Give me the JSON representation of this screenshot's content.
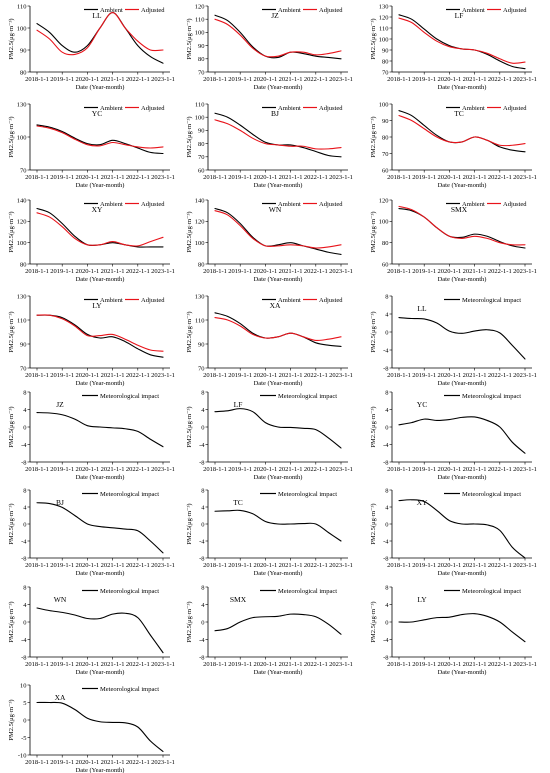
{
  "xticks": [
    "2018-1-1",
    "2019-1-1",
    "2020-1-1",
    "2021-1-1",
    "2022-1-1",
    "2023-1-1"
  ],
  "xlabel": "Date (Year-month)",
  "ylabel": "PM2.5(μg·m⁻³)",
  "legend": {
    "ambient": "Ambient",
    "adjusted": "Adjusted",
    "met": "Meteorological impact"
  },
  "colors": {
    "ambient": "#000000",
    "adjusted": "#e8131a",
    "axis": "#000000"
  },
  "chart_data": [
    {
      "type": "line",
      "title": "LL",
      "ylim": [
        80,
        110
      ],
      "yticks": [
        80,
        90,
        100,
        110
      ],
      "x": [
        0,
        0.5,
        1,
        1.5,
        2,
        2.5,
        3,
        3.5,
        4,
        4.5,
        5
      ],
      "series": [
        {
          "name": "Ambient",
          "values": [
            102,
            98,
            92,
            89,
            92,
            100,
            107,
            100,
            92,
            87,
            84
          ]
        },
        {
          "name": "Adjusted",
          "values": [
            99,
            95,
            89,
            88,
            91,
            100,
            107,
            100,
            94,
            90,
            90
          ]
        }
      ]
    },
    {
      "type": "line",
      "title": "JZ",
      "ylim": [
        70,
        120
      ],
      "yticks": [
        70,
        80,
        90,
        100,
        110,
        120
      ],
      "x": [
        0,
        0.5,
        1,
        1.5,
        2,
        2.5,
        3,
        3.5,
        4,
        4.5,
        5
      ],
      "series": [
        {
          "name": "Ambient",
          "values": [
            113,
            109,
            100,
            89,
            82,
            81,
            85,
            84,
            82,
            81,
            80
          ]
        },
        {
          "name": "Adjusted",
          "values": [
            110,
            106,
            98,
            88,
            82,
            82,
            85,
            85,
            83,
            84,
            86
          ]
        }
      ]
    },
    {
      "type": "line",
      "title": "LF",
      "ylim": [
        70,
        130
      ],
      "yticks": [
        70,
        80,
        90,
        100,
        110,
        120,
        130
      ],
      "x": [
        0,
        0.5,
        1,
        1.5,
        2,
        2.5,
        3,
        3.5,
        4,
        4.5,
        5
      ],
      "series": [
        {
          "name": "Ambient",
          "values": [
            122,
            118,
            109,
            100,
            94,
            91,
            90,
            86,
            80,
            75,
            73
          ]
        },
        {
          "name": "Adjusted",
          "values": [
            119,
            115,
            106,
            98,
            93,
            91,
            90,
            87,
            82,
            78,
            79
          ]
        }
      ]
    },
    {
      "type": "line",
      "title": "YC",
      "ylim": [
        70,
        130
      ],
      "yticks": [
        70,
        100,
        130
      ],
      "x": [
        0,
        0.5,
        1,
        1.5,
        2,
        2.5,
        3,
        3.5,
        4,
        4.5,
        5
      ],
      "series": [
        {
          "name": "Ambient",
          "values": [
            111,
            109,
            105,
            99,
            94,
            93,
            97,
            94,
            90,
            86,
            85
          ]
        },
        {
          "name": "Adjusted",
          "values": [
            110,
            108,
            104,
            98,
            93,
            92,
            95,
            93,
            91,
            90,
            91
          ]
        }
      ]
    },
    {
      "type": "line",
      "title": "BJ",
      "ylim": [
        60,
        110
      ],
      "yticks": [
        60,
        70,
        80,
        90,
        100,
        110
      ],
      "x": [
        0,
        0.5,
        1,
        1.5,
        2,
        2.5,
        3,
        3.5,
        4,
        4.5,
        5
      ],
      "series": [
        {
          "name": "Ambient",
          "values": [
            103,
            100,
            94,
            87,
            81,
            79,
            79,
            77,
            74,
            71,
            70
          ]
        },
        {
          "name": "Adjusted",
          "values": [
            98,
            95,
            90,
            84,
            80,
            79,
            78,
            78,
            76,
            76,
            77
          ]
        }
      ]
    },
    {
      "type": "line",
      "title": "TC",
      "ylim": [
        60,
        100
      ],
      "yticks": [
        60,
        70,
        80,
        90,
        100
      ],
      "x": [
        0,
        0.5,
        1,
        1.5,
        2,
        2.5,
        3,
        3.5,
        4,
        4.5,
        5
      ],
      "series": [
        {
          "name": "Ambient",
          "values": [
            96,
            93,
            87,
            81,
            77,
            77,
            80,
            78,
            74,
            72,
            71
          ]
        },
        {
          "name": "Adjusted",
          "values": [
            93,
            90,
            85,
            80,
            77,
            77,
            80,
            78,
            75,
            75,
            76
          ]
        }
      ]
    },
    {
      "type": "line",
      "title": "XY",
      "ylim": [
        80,
        140
      ],
      "yticks": [
        80,
        100,
        120,
        140
      ],
      "x": [
        0,
        0.5,
        1,
        1.5,
        2,
        2.5,
        3,
        3.5,
        4,
        4.5,
        5
      ],
      "series": [
        {
          "name": "Ambient",
          "values": [
            132,
            128,
            118,
            106,
            98,
            98,
            100,
            98,
            96,
            96,
            96
          ]
        },
        {
          "name": "Adjusted",
          "values": [
            128,
            124,
            115,
            104,
            98,
            98,
            101,
            98,
            97,
            101,
            105
          ]
        }
      ]
    },
    {
      "type": "line",
      "title": "WN",
      "ylim": [
        80,
        140
      ],
      "yticks": [
        80,
        100,
        120,
        140
      ],
      "x": [
        0,
        0.5,
        1,
        1.5,
        2,
        2.5,
        3,
        3.5,
        4,
        4.5,
        5
      ],
      "series": [
        {
          "name": "Ambient",
          "values": [
            132,
            128,
            118,
            105,
            97,
            98,
            100,
            97,
            94,
            91,
            89
          ]
        },
        {
          "name": "Adjusted",
          "values": [
            130,
            126,
            116,
            104,
            97,
            97,
            98,
            97,
            95,
            96,
            98
          ]
        }
      ]
    },
    {
      "type": "line",
      "title": "SMX",
      "ylim": [
        60,
        120
      ],
      "yticks": [
        60,
        80,
        100,
        120
      ],
      "x": [
        0,
        0.5,
        1,
        1.5,
        2,
        2.5,
        3,
        3.5,
        4,
        4.5,
        5
      ],
      "series": [
        {
          "name": "Ambient",
          "values": [
            112,
            110,
            104,
            94,
            86,
            85,
            88,
            86,
            81,
            77,
            75
          ]
        },
        {
          "name": "Adjusted",
          "values": [
            114,
            111,
            104,
            94,
            86,
            84,
            86,
            84,
            80,
            78,
            78
          ]
        }
      ]
    },
    {
      "type": "line",
      "title": "LY",
      "ylim": [
        70,
        130
      ],
      "yticks": [
        70,
        90,
        110,
        130
      ],
      "x": [
        0,
        0.5,
        1,
        1.5,
        2,
        2.5,
        3,
        3.5,
        4,
        4.5,
        5
      ],
      "series": [
        {
          "name": "Ambient",
          "values": [
            114,
            114,
            112,
            106,
            98,
            95,
            96,
            92,
            86,
            81,
            79
          ]
        },
        {
          "name": "Adjusted",
          "values": [
            114,
            114,
            111,
            105,
            97,
            97,
            98,
            94,
            89,
            85,
            84
          ]
        }
      ]
    },
    {
      "type": "line",
      "title": "XA",
      "ylim": [
        70,
        130
      ],
      "yticks": [
        70,
        90,
        110,
        130
      ],
      "x": [
        0,
        0.5,
        1,
        1.5,
        2,
        2.5,
        3,
        3.5,
        4,
        4.5,
        5
      ],
      "series": [
        {
          "name": "Ambient",
          "values": [
            116,
            113,
            107,
            99,
            95,
            96,
            99,
            96,
            91,
            89,
            88
          ]
        },
        {
          "name": "Adjusted",
          "values": [
            112,
            110,
            105,
            98,
            95,
            96,
            99,
            96,
            93,
            94,
            96
          ]
        }
      ]
    },
    {
      "type": "line",
      "title": "LL",
      "ylim": [
        -8,
        8
      ],
      "yticks": [
        -8,
        -4,
        0,
        4,
        8
      ],
      "x": [
        0,
        0.5,
        1,
        1.5,
        2,
        2.5,
        3,
        3.5,
        4,
        4.5,
        5
      ],
      "series": [
        {
          "name": "Meteorological impact",
          "values": [
            3.2,
            3,
            2.9,
            2,
            0.2,
            -0.3,
            0.2,
            0.5,
            -0.2,
            -3,
            -6
          ]
        }
      ]
    },
    {
      "type": "line",
      "title": "JZ",
      "ylim": [
        -8,
        8
      ],
      "yticks": [
        -8,
        -4,
        0,
        4,
        8
      ],
      "x": [
        0,
        0.5,
        1,
        1.5,
        2,
        2.5,
        3,
        3.5,
        4,
        4.5,
        5
      ],
      "series": [
        {
          "name": "Meteorological impact",
          "values": [
            3.3,
            3.2,
            2.8,
            1.8,
            0.3,
            0,
            -0.2,
            -0.4,
            -1,
            -2.8,
            -4.5
          ]
        }
      ]
    },
    {
      "type": "line",
      "title": "LF",
      "ylim": [
        -8,
        8
      ],
      "yticks": [
        -8,
        -4,
        0,
        4,
        8
      ],
      "x": [
        0,
        0.5,
        1,
        1.5,
        2,
        2.5,
        3,
        3.5,
        4,
        4.5,
        5
      ],
      "series": [
        {
          "name": "Meteorological impact",
          "values": [
            3.5,
            3.7,
            4.2,
            3.5,
            1,
            0,
            -0.1,
            -0.3,
            -0.6,
            -2.5,
            -4.8
          ]
        }
      ]
    },
    {
      "type": "line",
      "title": "YC",
      "ylim": [
        -8,
        8
      ],
      "yticks": [
        -8,
        -4,
        0,
        4,
        8
      ],
      "x": [
        0,
        0.5,
        1,
        1.5,
        2,
        2.5,
        3,
        3.5,
        4,
        4.5,
        5
      ],
      "series": [
        {
          "name": "Meteorological impact",
          "values": [
            0.5,
            1,
            1.8,
            1.5,
            1.7,
            2.2,
            2.3,
            1.5,
            0,
            -3.5,
            -6
          ]
        }
      ]
    },
    {
      "type": "line",
      "title": "BJ",
      "ylim": [
        -8,
        8
      ],
      "yticks": [
        -8,
        -4,
        0,
        4,
        8
      ],
      "x": [
        0,
        0.5,
        1,
        1.5,
        2,
        2.5,
        3,
        3.5,
        4,
        4.5,
        5
      ],
      "series": [
        {
          "name": "Meteorological impact",
          "values": [
            5,
            4.8,
            3.9,
            2,
            0,
            -0.6,
            -0.9,
            -1.2,
            -1.6,
            -4,
            -6.8
          ]
        }
      ]
    },
    {
      "type": "line",
      "title": "TC",
      "ylim": [
        -8,
        8
      ],
      "yticks": [
        -8,
        -4,
        0,
        4,
        8
      ],
      "x": [
        0,
        0.5,
        1,
        1.5,
        2,
        2.5,
        3,
        3.5,
        4,
        4.5,
        5
      ],
      "series": [
        {
          "name": "Meteorological impact",
          "values": [
            3,
            3.1,
            3.2,
            2.4,
            0.6,
            0,
            0,
            0.1,
            0,
            -2,
            -4
          ]
        }
      ]
    },
    {
      "type": "line",
      "title": "XY",
      "ylim": [
        -8,
        8
      ],
      "yticks": [
        -8,
        -4,
        0,
        4,
        8
      ],
      "x": [
        0,
        0.5,
        1,
        1.5,
        2,
        2.5,
        3,
        3.5,
        4,
        4.5,
        5
      ],
      "series": [
        {
          "name": "Meteorological impact",
          "values": [
            5.5,
            5.7,
            5.3,
            3.2,
            0.8,
            0,
            0,
            -0.2,
            -1.5,
            -5.5,
            -8
          ]
        }
      ]
    },
    {
      "type": "line",
      "title": "WN",
      "ylim": [
        -8,
        8
      ],
      "yticks": [
        -8,
        -4,
        0,
        4,
        8
      ],
      "x": [
        0,
        0.5,
        1,
        1.5,
        2,
        2.5,
        3,
        3.5,
        4,
        4.5,
        5
      ],
      "series": [
        {
          "name": "Meteorological impact",
          "values": [
            3.2,
            2.6,
            2.2,
            1.6,
            0.8,
            0.8,
            1.8,
            2,
            1,
            -3,
            -7
          ]
        }
      ]
    },
    {
      "type": "line",
      "title": "SMX",
      "ylim": [
        -8,
        8
      ],
      "yticks": [
        -8,
        -4,
        0,
        4,
        8
      ],
      "x": [
        0,
        0.5,
        1,
        1.5,
        2,
        2.5,
        3,
        3.5,
        4,
        4.5,
        5
      ],
      "series": [
        {
          "name": "Meteorological impact",
          "values": [
            -2,
            -1.5,
            0,
            1,
            1.2,
            1.3,
            1.8,
            1.7,
            1.2,
            -0.5,
            -2.8
          ]
        }
      ]
    },
    {
      "type": "line",
      "title": "LY",
      "ylim": [
        -8,
        8
      ],
      "yticks": [
        -8,
        -4,
        0,
        4,
        8
      ],
      "x": [
        0,
        0.5,
        1,
        1.5,
        2,
        2.5,
        3,
        3.5,
        4,
        4.5,
        5
      ],
      "series": [
        {
          "name": "Meteorological impact",
          "values": [
            0,
            0,
            0.5,
            1,
            1.1,
            1.7,
            1.9,
            1.3,
            0,
            -2.3,
            -4.5
          ]
        }
      ]
    },
    {
      "type": "line",
      "title": "XA",
      "ylim": [
        -10,
        10
      ],
      "yticks": [
        -10,
        -5,
        0,
        5,
        10
      ],
      "x": [
        0,
        0.5,
        1,
        1.5,
        2,
        2.5,
        3,
        3.5,
        4,
        4.5,
        5
      ],
      "series": [
        {
          "name": "Meteorological impact",
          "values": [
            5,
            5,
            4.8,
            3,
            0.5,
            -0.5,
            -0.7,
            -0.8,
            -2,
            -6,
            -9
          ]
        }
      ]
    }
  ]
}
